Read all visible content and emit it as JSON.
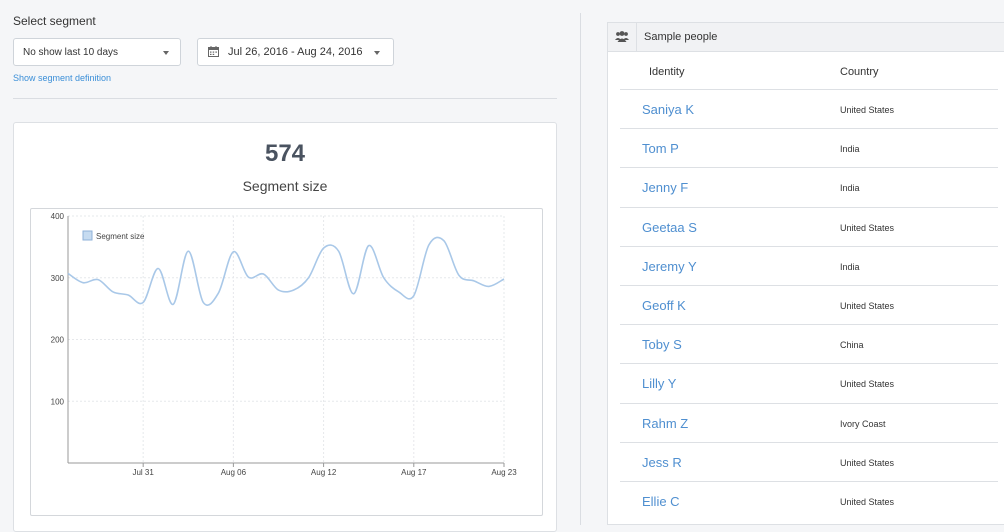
{
  "segment": {
    "section_title": "Select segment",
    "dropdown_value": "No show last 10 days",
    "date_range": "Jul 26, 2016 - Aug 24, 2016",
    "definition_link": "Show segment definition"
  },
  "summary": {
    "count": "574",
    "caption": "Segment size"
  },
  "chart_data": {
    "type": "line",
    "title": "",
    "xlabel": "",
    "ylabel": "",
    "ylim": [
      0,
      400
    ],
    "yticks": [
      "400",
      "300",
      "200",
      "100"
    ],
    "xticks": [
      "Jul 31",
      "Aug 06",
      "Aug 12",
      "Aug 17",
      "Aug 23"
    ],
    "legend": "top-left",
    "grid": true,
    "series": [
      {
        "name": "Segment size",
        "color": "#a9c8e8",
        "values": [
          307,
          292,
          297,
          277,
          272,
          260,
          315,
          257,
          343,
          260,
          275,
          342,
          301,
          306,
          280,
          280,
          300,
          348,
          343,
          274,
          352,
          300,
          277,
          271,
          353,
          360,
          304,
          295,
          286,
          298
        ]
      }
    ]
  },
  "people": {
    "title": "Sample people",
    "header_icon": "users-icon",
    "col_identity": "Identity",
    "col_country": "Country",
    "rows": [
      {
        "name": "Saniya K",
        "country": "United States"
      },
      {
        "name": "Tom P",
        "country": "India"
      },
      {
        "name": "Jenny F",
        "country": "India"
      },
      {
        "name": "Geetaa S",
        "country": "United States"
      },
      {
        "name": "Jeremy Y",
        "country": "India"
      },
      {
        "name": "Geoff K",
        "country": "United States"
      },
      {
        "name": "Toby S",
        "country": "China"
      },
      {
        "name": "Lilly Y",
        "country": "United States"
      },
      {
        "name": "Rahm Z",
        "country": "Ivory Coast"
      },
      {
        "name": "Jess R",
        "country": "United States"
      },
      {
        "name": "Ellie C",
        "country": "United States"
      }
    ]
  }
}
